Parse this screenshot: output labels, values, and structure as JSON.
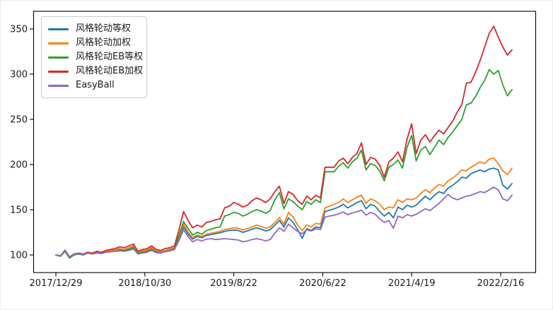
{
  "chart_data": {
    "type": "line",
    "title": "",
    "xlabel": "",
    "ylabel": "",
    "grid": false,
    "legend_position": "upper-left",
    "note": "Cumulative net-value curves; each series has 101 samples evenly spaced over the date range shown on the x-axis (2017/12/29 through shortly after 2022/2/16).",
    "x_axis": {
      "tick_labels": [
        "2017/12/29",
        "2018/10/30",
        "2019/8/22",
        "2020/6/22",
        "2021/4/19",
        "2022/2/16"
      ]
    },
    "y_axis": {
      "ticks": [
        100,
        150,
        200,
        250,
        300,
        350
      ],
      "range": [
        80,
        370
      ]
    },
    "series": [
      {
        "name": "风格轮动等权",
        "color": "#1f77b4",
        "values": [
          100,
          98.5,
          104,
          97,
          100,
          101,
          100,
          102,
          101,
          102.5,
          102,
          103.5,
          104,
          104.5,
          105.5,
          105,
          106.5,
          108.5,
          102,
          103.5,
          104.5,
          106.5,
          103.5,
          102.5,
          104.5,
          105.5,
          107,
          118,
          131,
          123,
          117.5,
          120.5,
          119,
          121.5,
          122.5,
          123.5,
          124.5,
          126,
          127,
          127.5,
          127,
          125,
          126.5,
          128.5,
          130,
          128.5,
          126.5,
          128,
          133,
          138,
          131,
          141,
          136,
          128,
          118.5,
          129,
          127,
          131,
          130,
          148,
          149.5,
          151,
          153,
          156,
          152,
          155,
          158,
          160,
          151,
          156,
          154,
          148,
          143,
          147,
          141,
          153,
          150,
          155,
          153,
          155,
          160,
          165,
          161,
          166,
          170,
          168,
          174,
          177,
          181,
          186,
          185,
          190,
          192,
          194,
          192,
          195,
          196,
          194,
          177,
          173,
          179
        ]
      },
      {
        "name": "风格轮动加权",
        "color": "#ff7f0e",
        "values": [
          100,
          99,
          104.5,
          97.5,
          100.5,
          101.5,
          100.5,
          102.5,
          101.5,
          103,
          102.5,
          104,
          105,
          105.5,
          107,
          106,
          108,
          110,
          103,
          104.5,
          105.5,
          108,
          104.5,
          103.5,
          105,
          106.5,
          108,
          120,
          134,
          125,
          119,
          122,
          120.5,
          123,
          124,
          125,
          126,
          128,
          129,
          130,
          129.5,
          127.5,
          129,
          131,
          133,
          131.5,
          129.5,
          131,
          136,
          141,
          134,
          147,
          142,
          133,
          127,
          133,
          131,
          135,
          134,
          152,
          154,
          156,
          158,
          162,
          158,
          161,
          164,
          166,
          157,
          162,
          160,
          156,
          150,
          153,
          152,
          161,
          158,
          162,
          161,
          163,
          168,
          172,
          169,
          174,
          178,
          176,
          182,
          185,
          189,
          194,
          193,
          197,
          200,
          203,
          201,
          206,
          207,
          201,
          193,
          189,
          196
        ]
      },
      {
        "name": "风格轮动EB等权",
        "color": "#2ca02c",
        "values": [
          100,
          98.5,
          104,
          96.5,
          100,
          101,
          100,
          102,
          101,
          102,
          101.5,
          103,
          103.5,
          104,
          105,
          104.5,
          106,
          108,
          101.5,
          103,
          104,
          106,
          103.5,
          102.5,
          104,
          105,
          107,
          122,
          137,
          129,
          122,
          125,
          123,
          127,
          128.5,
          130,
          131,
          143,
          144.5,
          147,
          146,
          143,
          145,
          148,
          150,
          148.5,
          146,
          149,
          161,
          169,
          151,
          162,
          159,
          154,
          150,
          159,
          156,
          161,
          158,
          192,
          192,
          192,
          198,
          202,
          196,
          203,
          207,
          216,
          194,
          201,
          199,
          193,
          182,
          197,
          200,
          205,
          196,
          219,
          232,
          204,
          216,
          220,
          211,
          219,
          227,
          222,
          230,
          236,
          243,
          250,
          266,
          268,
          275,
          285,
          293,
          305,
          300,
          304,
          288,
          276,
          283
        ]
      },
      {
        "name": "风格轮动EB加权",
        "color": "#d62728",
        "values": [
          100,
          99,
          105,
          98,
          101,
          102,
          101,
          103,
          102,
          104,
          103,
          105,
          106,
          107,
          109,
          108,
          110,
          112,
          104,
          106,
          107,
          110,
          106,
          105,
          107,
          108,
          110,
          128,
          148,
          138,
          130,
          133,
          131,
          136,
          137,
          139,
          140,
          152,
          154,
          158,
          156,
          153,
          155,
          160,
          163,
          161,
          158,
          162,
          170,
          176,
          157,
          170,
          167,
          160,
          156,
          165,
          161,
          166,
          163,
          197,
          197,
          197,
          204,
          207,
          201,
          208,
          212,
          224,
          200,
          208,
          206,
          199,
          186,
          203,
          207,
          214,
          203,
          228,
          245,
          212,
          227,
          233,
          225,
          232,
          238,
          234,
          241,
          248,
          258,
          266,
          290,
          291,
          302,
          315,
          330,
          345,
          353,
          341,
          330,
          321,
          327
        ]
      },
      {
        "name": "EasyBall",
        "color": "#9467bd",
        "values": [
          100,
          99,
          105.5,
          98,
          100.5,
          101.5,
          100.5,
          102,
          101.5,
          102.5,
          102,
          103,
          103.5,
          104,
          104.5,
          104,
          105,
          106.5,
          101,
          102,
          103,
          105,
          102.5,
          102,
          103.5,
          104.5,
          106,
          116,
          128,
          120,
          114.5,
          117,
          115.5,
          117.5,
          118,
          117,
          117.5,
          118,
          117.5,
          117,
          116.5,
          114.5,
          115.5,
          117,
          118,
          117,
          115.5,
          117,
          124,
          130,
          126,
          134,
          130,
          126,
          123.5,
          128,
          126.5,
          129,
          128,
          142,
          143,
          144,
          145.5,
          147.5,
          144.5,
          146.5,
          148,
          149.5,
          144,
          147,
          145,
          140,
          136,
          138,
          129.5,
          143,
          141,
          144.5,
          143,
          145,
          148,
          151,
          149,
          153,
          157,
          162,
          167,
          163,
          161,
          163,
          165,
          166,
          168,
          170,
          169,
          172,
          175,
          172,
          162,
          160,
          166
        ]
      }
    ]
  }
}
